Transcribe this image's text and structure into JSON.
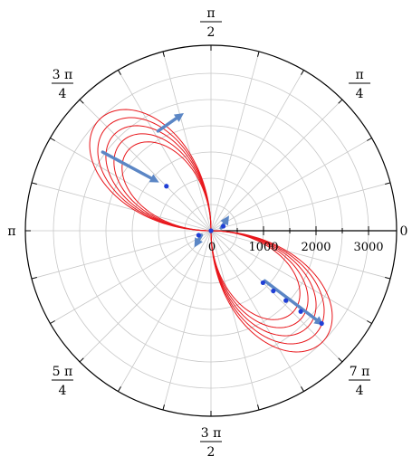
{
  "chart_data": {
    "type": "polar-line",
    "title": "",
    "angle_labels": [
      {
        "angle_deg": 0,
        "num": "0",
        "den": ""
      },
      {
        "angle_deg": 45,
        "num": "π",
        "den": "4"
      },
      {
        "angle_deg": 90,
        "num": "π",
        "den": "2"
      },
      {
        "angle_deg": 135,
        "num": "3 π",
        "den": "4"
      },
      {
        "angle_deg": 180,
        "num": "π",
        "den": ""
      },
      {
        "angle_deg": 225,
        "num": "5 π",
        "den": "4"
      },
      {
        "angle_deg": 270,
        "num": "3 π",
        "den": "2"
      },
      {
        "angle_deg": 315,
        "num": "7 π",
        "den": "4"
      }
    ],
    "radial_ticks": [
      {
        "value": 0,
        "label": "0"
      },
      {
        "value": 1000,
        "label": "1000"
      },
      {
        "value": 2000,
        "label": "2000"
      },
      {
        "value": 3000,
        "label": "3000"
      }
    ],
    "r_max": 3500,
    "curve_model": "r = A * cos(2*(theta - phase)), drawn over cos>0 lobes (2nd and 4th quadrants)",
    "series": [
      {
        "amplitude": 2200,
        "phase_deg": 135
      },
      {
        "amplitude": 2400,
        "phase_deg": 135
      },
      {
        "amplitude": 2600,
        "phase_deg": 135
      },
      {
        "amplitude": 2800,
        "phase_deg": 135
      },
      {
        "amplitude": 3000,
        "phase_deg": 135
      }
    ],
    "markers": [
      {
        "r": 1400,
        "theta_deg": 315
      },
      {
        "r": 1650,
        "theta_deg": 316
      },
      {
        "r": 1950,
        "theta_deg": 317
      },
      {
        "r": 2300,
        "theta_deg": 318
      },
      {
        "r": 2750,
        "theta_deg": 320
      },
      {
        "r": 1200,
        "theta_deg": 135
      },
      {
        "r": 250,
        "theta_deg": 20
      },
      {
        "r": 250,
        "theta_deg": 200
      },
      {
        "r": 0,
        "theta_deg": 0
      }
    ],
    "arrows": [
      {
        "from": {
          "r": 1400,
          "theta_deg": 317
        },
        "to": {
          "r": 2800,
          "theta_deg": 320
        }
      },
      {
        "from": {
          "r": 2550,
          "theta_deg": 144
        },
        "to": {
          "r": 1350,
          "theta_deg": 137
        }
      },
      {
        "from": {
          "r": 2150,
          "theta_deg": 118
        },
        "to": {
          "r": 2300,
          "theta_deg": 103
        }
      },
      {
        "from": {
          "r": 200,
          "theta_deg": 15
        },
        "to": {
          "r": 450,
          "theta_deg": 40
        }
      },
      {
        "from": {
          "r": 200,
          "theta_deg": 205
        },
        "to": {
          "r": 450,
          "theta_deg": 225
        }
      }
    ],
    "grid": true,
    "colors": {
      "curve": "#e8161b",
      "arrow": "#5b86c5",
      "marker": "#1f3fd6",
      "grid": "#c8c8c8",
      "axis": "#000000"
    }
  }
}
